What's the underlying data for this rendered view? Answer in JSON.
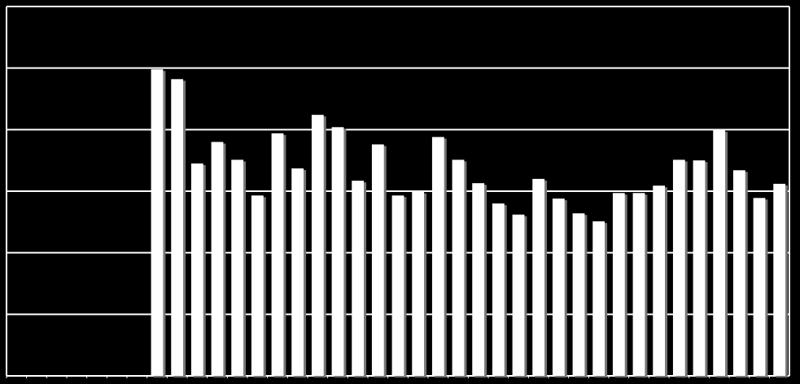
{
  "chart_data": {
    "type": "bar",
    "categories": [
      null,
      null,
      null,
      null,
      null,
      null,
      null,
      null,
      null,
      null,
      null,
      null,
      null,
      null,
      null,
      null,
      null,
      null,
      null,
      null,
      null,
      null,
      null,
      null,
      null,
      null,
      null,
      null,
      null,
      null,
      null,
      null,
      null,
      null,
      null,
      null,
      null,
      null,
      null
    ],
    "values": [
      0,
      0,
      0,
      0,
      0,
      0,
      0,
      4.98,
      4.82,
      3.45,
      3.8,
      3.51,
      2.93,
      3.94,
      3.37,
      4.24,
      4.04,
      3.17,
      3.76,
      2.93,
      2.99,
      3.88,
      3.51,
      3.13,
      2.8,
      2.62,
      3.2,
      2.88,
      2.64,
      2.51,
      2.97,
      2.97,
      3.09,
      3.51,
      3.5,
      3.99,
      3.34,
      2.89,
      3.12
    ],
    "color": "#ffffff",
    "ylim": [
      0,
      6
    ],
    "yticks": [
      0,
      1,
      2,
      3,
      4,
      5,
      6
    ],
    "grid": true
  }
}
